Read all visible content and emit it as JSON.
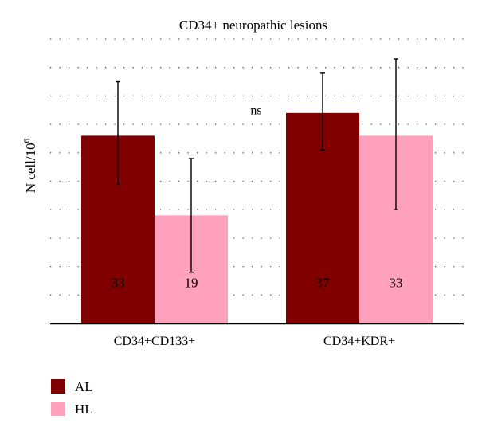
{
  "chart_data": {
    "type": "bar",
    "title": "CD34+ neuropathic lesions",
    "ylabel": "N cell/10",
    "ylabel_sup": "6",
    "xlabel": "",
    "categories": [
      "CD34+CD133+",
      "CD34+KDR+"
    ],
    "series": [
      {
        "name": "AL",
        "color": "#800000",
        "values": [
          33,
          37
        ],
        "err_low": [
          24.5,
          30.5
        ],
        "err_high": [
          42.5,
          44
        ]
      },
      {
        "name": "HL",
        "color": "#ffa0bc",
        "values": [
          19,
          33
        ],
        "err_low": [
          9,
          20
        ],
        "err_high": [
          29,
          46.5
        ]
      }
    ],
    "bar_labels": [
      [
        "33",
        "37"
      ],
      [
        "19",
        "33"
      ]
    ],
    "ylim": [
      0,
      50
    ],
    "grid": true,
    "annotation": {
      "text": "ns",
      "x_between": [
        0,
        1
      ],
      "y": 37.5
    },
    "legend_position": "bottom-left"
  }
}
